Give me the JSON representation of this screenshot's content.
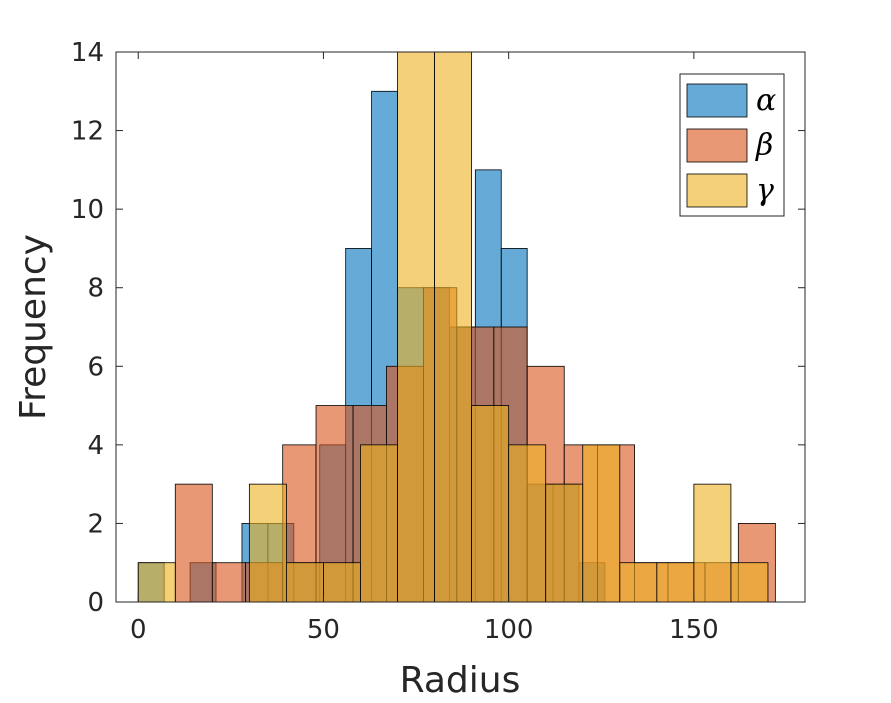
{
  "chart_data": {
    "type": "histogram",
    "title": "",
    "xlabel": "Radius",
    "ylabel": "Frequency",
    "xlim": [
      -6,
      180
    ],
    "ylim": [
      0,
      14
    ],
    "xticks": [
      0,
      50,
      100,
      150
    ],
    "yticks": [
      0,
      2,
      4,
      6,
      8,
      10,
      12,
      14
    ],
    "xtick_labels": [
      "0",
      "50",
      "100",
      "150"
    ],
    "ytick_labels": [
      "0",
      "2",
      "4",
      "6",
      "8",
      "10",
      "12",
      "14"
    ],
    "legend_position": "top-right",
    "series": [
      {
        "name": "α",
        "color": "#0072BD",
        "alpha": 0.6,
        "bins": [
          {
            "x0": 0,
            "x1": 7,
            "count": 1
          },
          {
            "x0": 14,
            "x1": 21,
            "count": 1
          },
          {
            "x0": 28,
            "x1": 35,
            "count": 2
          },
          {
            "x0": 35,
            "x1": 42,
            "count": 2
          },
          {
            "x0": 42,
            "x1": 49,
            "count": 1
          },
          {
            "x0": 49,
            "x1": 56,
            "count": 4
          },
          {
            "x0": 56,
            "x1": 63,
            "count": 9
          },
          {
            "x0": 63,
            "x1": 70,
            "count": 13
          },
          {
            "x0": 70,
            "x1": 77,
            "count": 8
          },
          {
            "x0": 77,
            "x1": 84,
            "count": 8
          },
          {
            "x0": 84,
            "x1": 91,
            "count": 7
          },
          {
            "x0": 91,
            "x1": 98,
            "count": 11
          },
          {
            "x0": 98,
            "x1": 105,
            "count": 9
          },
          {
            "x0": 105,
            "x1": 112,
            "count": 3
          },
          {
            "x0": 112,
            "x1": 119,
            "count": 3
          },
          {
            "x0": 119,
            "x1": 126,
            "count": 1
          }
        ]
      },
      {
        "name": "β",
        "color": "#D95319",
        "alpha": 0.6,
        "bins": [
          {
            "x0": 10,
            "x1": 20,
            "count": 3
          },
          {
            "x0": 20,
            "x1": 29,
            "count": 1
          },
          {
            "x0": 29,
            "x1": 39,
            "count": 1
          },
          {
            "x0": 39,
            "x1": 48,
            "count": 4
          },
          {
            "x0": 48,
            "x1": 58,
            "count": 5
          },
          {
            "x0": 58,
            "x1": 67,
            "count": 5
          },
          {
            "x0": 67,
            "x1": 77,
            "count": 6
          },
          {
            "x0": 77,
            "x1": 86,
            "count": 8
          },
          {
            "x0": 86,
            "x1": 96,
            "count": 7
          },
          {
            "x0": 96,
            "x1": 105,
            "count": 7
          },
          {
            "x0": 105,
            "x1": 115,
            "count": 6
          },
          {
            "x0": 115,
            "x1": 124,
            "count": 4
          },
          {
            "x0": 124,
            "x1": 134,
            "count": 4
          },
          {
            "x0": 134,
            "x1": 143,
            "count": 1
          },
          {
            "x0": 143,
            "x1": 153,
            "count": 1
          },
          {
            "x0": 153,
            "x1": 162,
            "count": 1
          },
          {
            "x0": 162,
            "x1": 172,
            "count": 2
          }
        ]
      },
      {
        "name": "γ",
        "color": "#EDB120",
        "alpha": 0.6,
        "bins": [
          {
            "x0": 0,
            "x1": 10,
            "count": 1
          },
          {
            "x0": 30,
            "x1": 40,
            "count": 3
          },
          {
            "x0": 40,
            "x1": 50,
            "count": 1
          },
          {
            "x0": 50,
            "x1": 60,
            "count": 1
          },
          {
            "x0": 60,
            "x1": 70,
            "count": 4
          },
          {
            "x0": 70,
            "x1": 80,
            "count": 14
          },
          {
            "x0": 80,
            "x1": 90,
            "count": 14
          },
          {
            "x0": 90,
            "x1": 100,
            "count": 5
          },
          {
            "x0": 100,
            "x1": 110,
            "count": 4
          },
          {
            "x0": 110,
            "x1": 120,
            "count": 3
          },
          {
            "x0": 120,
            "x1": 130,
            "count": 4
          },
          {
            "x0": 130,
            "x1": 140,
            "count": 1
          },
          {
            "x0": 140,
            "x1": 150,
            "count": 1
          },
          {
            "x0": 150,
            "x1": 160,
            "count": 3
          },
          {
            "x0": 160,
            "x1": 170,
            "count": 1
          }
        ]
      }
    ]
  }
}
